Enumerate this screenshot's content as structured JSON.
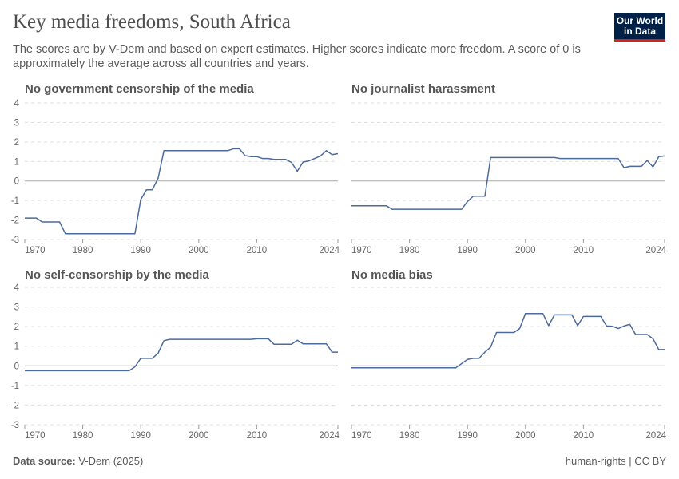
{
  "title": "Key media freedoms, South Africa",
  "subtitle": "The scores are by V-Dem and based on expert estimates. Higher scores indicate more freedom. A score of 0 is approximately the average across all countries and years.",
  "logo": {
    "line1": "Our World",
    "line2": "in Data"
  },
  "footer": {
    "source_label": "Data source:",
    "source": "V-Dem (2025)",
    "license": "human-rights | CC BY"
  },
  "colors": {
    "line": "#4c6a9c",
    "grid": "#dddddd",
    "zero": "#aaaaaa"
  },
  "chart_data": [
    {
      "type": "line",
      "title": "No government censorship of the media",
      "xlim": [
        1970,
        2024
      ],
      "ylim": [
        -3,
        4
      ],
      "yticks": [
        -3,
        -2,
        -1,
        0,
        1,
        2,
        3,
        4
      ],
      "xticks": [
        1970,
        1980,
        1990,
        2000,
        2010,
        2024
      ],
      "x": [
        1970,
        1972,
        1973,
        1975,
        1976,
        1977,
        1989,
        1990,
        1991,
        1992,
        1993,
        1994,
        2005,
        2006,
        2007,
        2008,
        2009,
        2010,
        2011,
        2012,
        2013,
        2015,
        2016,
        2017,
        2018,
        2019,
        2020,
        2021,
        2022,
        2023,
        2024
      ],
      "values": [
        -1.9,
        -1.9,
        -2.1,
        -2.1,
        -2.1,
        -2.7,
        -2.7,
        -0.95,
        -0.45,
        -0.45,
        0.15,
        1.55,
        1.55,
        1.65,
        1.65,
        1.3,
        1.25,
        1.25,
        1.15,
        1.15,
        1.1,
        1.1,
        0.95,
        0.5,
        0.97,
        1.03,
        1.15,
        1.28,
        1.55,
        1.35,
        1.4
      ]
    },
    {
      "type": "line",
      "title": "No journalist harassment",
      "xlim": [
        1970,
        2024
      ],
      "ylim": [
        -3,
        4
      ],
      "yticks": [
        -3,
        -2,
        -1,
        0,
        1,
        2,
        3,
        4
      ],
      "xticks": [
        1970,
        1980,
        1990,
        2000,
        2010,
        2024
      ],
      "x": [
        1970,
        1976,
        1977,
        1989,
        1990,
        1991,
        1993,
        1994,
        2005,
        2006,
        2016,
        2017,
        2018,
        2020,
        2021,
        2022,
        2023,
        2024
      ],
      "values": [
        -1.27,
        -1.27,
        -1.45,
        -1.45,
        -1.05,
        -0.78,
        -0.78,
        1.2,
        1.2,
        1.15,
        1.15,
        0.68,
        0.75,
        0.75,
        1.05,
        0.72,
        1.25,
        1.28
      ]
    },
    {
      "type": "line",
      "title": "No self-censorship by the media",
      "xlim": [
        1970,
        2024
      ],
      "ylim": [
        -3,
        4
      ],
      "yticks": [
        -3,
        -2,
        -1,
        0,
        1,
        2,
        3,
        4
      ],
      "xticks": [
        1970,
        1980,
        1990,
        2000,
        2010,
        2024
      ],
      "x": [
        1970,
        1988,
        1989,
        1990,
        1992,
        1993,
        1994,
        1995,
        2009,
        2010,
        2012,
        2013,
        2016,
        2017,
        2018,
        2022,
        2023,
        2024
      ],
      "values": [
        -0.25,
        -0.25,
        -0.05,
        0.38,
        0.38,
        0.65,
        1.28,
        1.35,
        1.35,
        1.38,
        1.38,
        1.1,
        1.1,
        1.3,
        1.12,
        1.12,
        0.7,
        0.7
      ]
    },
    {
      "type": "line",
      "title": "No media bias",
      "xlim": [
        1970,
        2024
      ],
      "ylim": [
        -3,
        4
      ],
      "yticks": [
        -3,
        -2,
        -1,
        0,
        1,
        2,
        3,
        4
      ],
      "xticks": [
        1970,
        1980,
        1990,
        2000,
        2010,
        2024
      ],
      "x": [
        1970,
        1988,
        1990,
        1991,
        1992,
        1993,
        1994,
        1995,
        1998,
        1999,
        2000,
        2003,
        2004,
        2005,
        2008,
        2009,
        2010,
        2013,
        2014,
        2015,
        2016,
        2017,
        2018,
        2019,
        2021,
        2022,
        2023,
        2024
      ],
      "values": [
        -0.1,
        -0.1,
        0.33,
        0.38,
        0.38,
        0.7,
        0.95,
        1.7,
        1.7,
        1.9,
        2.67,
        2.67,
        2.05,
        2.6,
        2.6,
        2.05,
        2.52,
        2.52,
        2.03,
        2.02,
        1.9,
        2.03,
        2.12,
        1.6,
        1.6,
        1.38,
        0.83,
        0.83
      ]
    }
  ]
}
